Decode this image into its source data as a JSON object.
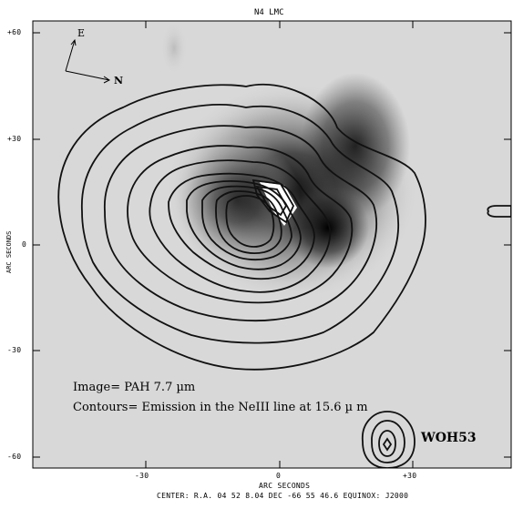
{
  "title": "N4 LMC",
  "compass": {
    "east": "E",
    "north": "N"
  },
  "axes": {
    "x_label": "ARC SECONDS",
    "y_label": "ARC SECONDS",
    "x_ticks": [
      "-30",
      "0",
      "+30"
    ],
    "y_ticks": [
      "+60",
      "+30",
      "0",
      "-30",
      "-60"
    ]
  },
  "footer": "CENTER: R.A. 04 52  8.04 DEC -66 55 46.6  EQUINOX: J2000",
  "annotations": {
    "image": "Image= PAH 7.7 µm",
    "contours": "Contours= Emission in the NeIII line at 15.6 µ m",
    "source": "WOH53"
  },
  "colors": {
    "background": "#d8d8d8",
    "frame": "#000000",
    "contour": "#111111"
  }
}
